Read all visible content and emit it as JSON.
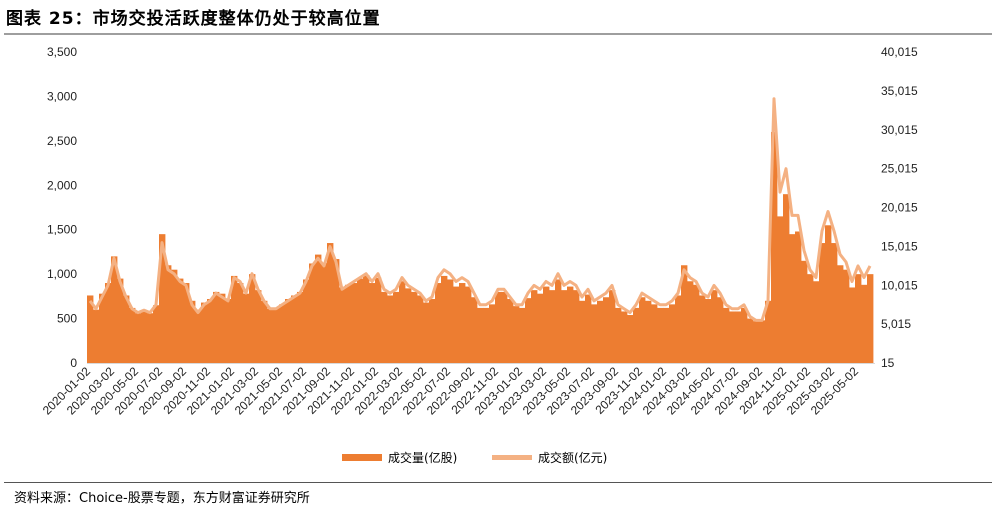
{
  "title": "图表 25：市场交投活跃度整体仍处于较高位置",
  "source": "资料来源：Choice-股票专题，东方财富证券研究所",
  "colors": {
    "volume": "#ed7d31",
    "amount": "#f4b183"
  },
  "chart_data": {
    "type": "bar+line",
    "title": "图表 25：市场交投活跃度整体仍处于较高位置",
    "x_start": "2020-01-02",
    "x_resolution": "half-month",
    "x_tick_labels": [
      "2020-01-02",
      "2020-03-02",
      "2020-05-02",
      "2020-07-02",
      "2020-09-02",
      "2020-11-02",
      "2021-01-02",
      "2021-03-02",
      "2021-05-02",
      "2021-07-02",
      "2021-09-02",
      "2021-11-02",
      "2022-01-02",
      "2022-03-02",
      "2022-05-02",
      "2022-07-02",
      "2022-09-02",
      "2022-11-02",
      "2023-01-02",
      "2023-03-02",
      "2023-05-02",
      "2023-07-02",
      "2023-09-02",
      "2023-11-02",
      "2024-01-02",
      "2024-03-02",
      "2024-05-02",
      "2024-07-02",
      "2024-09-02",
      "2024-11-02",
      "2025-01-02",
      "2025-03-02",
      "2025-05-02"
    ],
    "y_left": {
      "min": 0,
      "max": 3500,
      "ticks": [
        "0",
        "500",
        "1,000",
        "1,500",
        "2,000",
        "2,500",
        "3,000",
        "3,500"
      ]
    },
    "y_right": {
      "min": 15,
      "max": 40015,
      "ticks": [
        "15",
        "5,015",
        "10,015",
        "15,015",
        "20,015",
        "25,015",
        "30,015",
        "35,015",
        "40,015"
      ]
    },
    "series": [
      {
        "name": "成交量(亿股)",
        "type": "bar",
        "axis": "left",
        "values": [
          760,
          600,
          780,
          900,
          1200,
          950,
          760,
          620,
          560,
          580,
          560,
          650,
          1450,
          1100,
          1050,
          950,
          900,
          700,
          600,
          680,
          720,
          800,
          780,
          720,
          980,
          900,
          780,
          1000,
          820,
          700,
          610,
          620,
          660,
          720,
          760,
          800,
          940,
          1120,
          1220,
          1130,
          1350,
          1170,
          850,
          880,
          900,
          950,
          990,
          900,
          960,
          800,
          760,
          800,
          920,
          840,
          800,
          760,
          680,
          720,
          900,
          980,
          940,
          860,
          900,
          860,
          740,
          620,
          620,
          660,
          800,
          800,
          720,
          640,
          620,
          730,
          820,
          780,
          860,
          820,
          940,
          820,
          860,
          820,
          700,
          770,
          660,
          700,
          740,
          820,
          620,
          580,
          540,
          620,
          740,
          700,
          660,
          620,
          620,
          660,
          760,
          1100,
          920,
          880,
          760,
          720,
          820,
          740,
          620,
          580,
          580,
          620,
          500,
          470,
          480,
          700,
          2600,
          1650,
          1900,
          1450,
          1480,
          1150,
          1000,
          920,
          1350,
          1550,
          1350,
          1100,
          1050,
          850,
          1000,
          880,
          1000
        ]
      },
      {
        "name": "成交额(亿元)",
        "type": "line",
        "axis": "right",
        "values": [
          8000,
          7000,
          8500,
          10000,
          13500,
          10500,
          8500,
          7000,
          6500,
          6800,
          6500,
          7500,
          15500,
          12000,
          11500,
          10500,
          10000,
          7500,
          6500,
          7500,
          8000,
          9000,
          8500,
          8000,
          11000,
          10500,
          9000,
          11500,
          9500,
          8000,
          7000,
          7000,
          7500,
          8000,
          8500,
          9000,
          10500,
          12500,
          13500,
          12500,
          15000,
          13000,
          9500,
          10000,
          10500,
          11000,
          11500,
          10500,
          11500,
          9500,
          9000,
          9500,
          11000,
          10000,
          9500,
          9000,
          8000,
          8500,
          11000,
          12000,
          11500,
          10500,
          11000,
          10500,
          9000,
          7500,
          7500,
          8000,
          9500,
          9500,
          8500,
          7500,
          7500,
          9000,
          10000,
          9500,
          10500,
          10000,
          11500,
          10000,
          10500,
          10000,
          8500,
          9500,
          8000,
          8500,
          9000,
          10000,
          7500,
          7000,
          6500,
          7500,
          9000,
          8500,
          8000,
          7500,
          7500,
          8000,
          9000,
          12000,
          11000,
          10500,
          9000,
          8500,
          10000,
          9000,
          7500,
          7000,
          7000,
          7500,
          6000,
          5500,
          5500,
          8000,
          34000,
          22000,
          25000,
          19000,
          19000,
          14500,
          12000,
          11000,
          17000,
          19500,
          17000,
          14000,
          13000,
          10500,
          12500,
          11000,
          12500
        ]
      }
    ],
    "legend": [
      "成交量(亿股)",
      "成交额(亿元)"
    ],
    "legend_position": "bottom",
    "grid": false
  }
}
